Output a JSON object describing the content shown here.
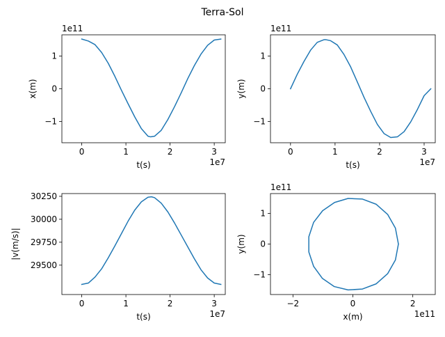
{
  "figure": {
    "title": "Terra-Sol"
  },
  "chart_data": [
    {
      "type": "line",
      "xlabel": "t(s)",
      "ylabel": "x(m)",
      "x_offset_label": "1e7",
      "y_offset_label": "1e11",
      "xlim": [
        -4.5,
        32.5
      ],
      "ylim": [
        -1.65,
        1.65
      ],
      "xticks": [
        0,
        1,
        2,
        3
      ],
      "yticks": [
        -1,
        0,
        1
      ],
      "series": [
        {
          "color": "#1f77b4",
          "x": [
            0,
            1.5,
            3,
            4.5,
            6,
            7.5,
            9,
            10.5,
            12,
            13.5,
            15,
            15.6,
            16.5,
            18,
            19.5,
            21,
            22.5,
            24,
            25.5,
            27,
            28.5,
            30,
            31.5
          ],
          "y": [
            1.52,
            1.46,
            1.35,
            1.11,
            0.78,
            0.38,
            -0.05,
            -0.46,
            -0.86,
            -1.22,
            -1.45,
            -1.47,
            -1.45,
            -1.27,
            -0.94,
            -0.55,
            -0.13,
            0.31,
            0.71,
            1.06,
            1.33,
            1.49,
            1.52
          ]
        }
      ]
    },
    {
      "type": "line",
      "xlabel": "t(s)",
      "ylabel": "y(m)",
      "x_offset_label": "1e7",
      "y_offset_label": "1e11",
      "xlim": [
        -4.5,
        32.5
      ],
      "ylim": [
        -1.65,
        1.65
      ],
      "xticks": [
        0,
        1,
        2,
        3
      ],
      "yticks": [
        -1,
        0,
        1
      ],
      "series": [
        {
          "color": "#1f77b4",
          "x": [
            0,
            1.5,
            3,
            4.5,
            6,
            7.5,
            8,
            9,
            10.5,
            12,
            13.5,
            15,
            16.5,
            18,
            19.5,
            21,
            22.5,
            24,
            25.5,
            27,
            28.5,
            30,
            31.5
          ],
          "y": [
            0,
            0.44,
            0.83,
            1.18,
            1.42,
            1.5,
            1.5,
            1.47,
            1.34,
            1.05,
            0.67,
            0.21,
            -0.26,
            -0.69,
            -1.09,
            -1.37,
            -1.49,
            -1.47,
            -1.31,
            -1.01,
            -0.63,
            -0.21,
            0.0
          ]
        }
      ]
    },
    {
      "type": "line",
      "xlabel": "t(s)",
      "ylabel": "|v(m/s)|",
      "x_offset_label": "1e7",
      "y_offset_label": "",
      "xlim": [
        -4.5,
        32.5
      ],
      "ylim": [
        29180,
        30280
      ],
      "xticks": [
        0,
        1,
        2,
        3
      ],
      "yticks": [
        29500,
        29750,
        30000,
        30250
      ],
      "series": [
        {
          "color": "#1f77b4",
          "x": [
            0,
            1.5,
            3,
            4.5,
            6,
            7.5,
            9,
            10.5,
            12,
            13.5,
            15,
            15.8,
            16.5,
            18,
            19.5,
            21,
            22.5,
            24,
            25.5,
            27,
            28.5,
            30,
            31.5
          ],
          "y": [
            29290,
            29305,
            29370,
            29460,
            29580,
            29710,
            29845,
            29980,
            30100,
            30190,
            30240,
            30245,
            30235,
            30175,
            30080,
            29960,
            29830,
            29700,
            29570,
            29450,
            29360,
            29305,
            29290
          ]
        }
      ]
    },
    {
      "type": "line",
      "xlabel": "x(m)",
      "ylabel": "y(m)",
      "x_offset_label": "1e11",
      "y_offset_label": "1e11",
      "xlim": [
        -2.75,
        2.75
      ],
      "ylim": [
        -1.65,
        1.65
      ],
      "xticks": [
        -2,
        0,
        2
      ],
      "yticks": [
        -1,
        0,
        1
      ],
      "series": [
        {
          "color": "#1f77b4",
          "x": [
            1.52,
            1.42,
            1.16,
            0.78,
            0.32,
            -0.16,
            -0.61,
            -1.01,
            -1.31,
            -1.47,
            -1.47,
            -1.31,
            -1.02,
            -0.62,
            -0.16,
            0.32,
            0.78,
            1.16,
            1.42,
            1.52
          ],
          "y": [
            0.0,
            0.52,
            0.97,
            1.3,
            1.47,
            1.49,
            1.36,
            1.09,
            0.71,
            0.24,
            -0.26,
            -0.73,
            -1.12,
            -1.39,
            -1.5,
            -1.47,
            -1.3,
            -0.97,
            -0.52,
            0.0
          ]
        }
      ]
    }
  ]
}
